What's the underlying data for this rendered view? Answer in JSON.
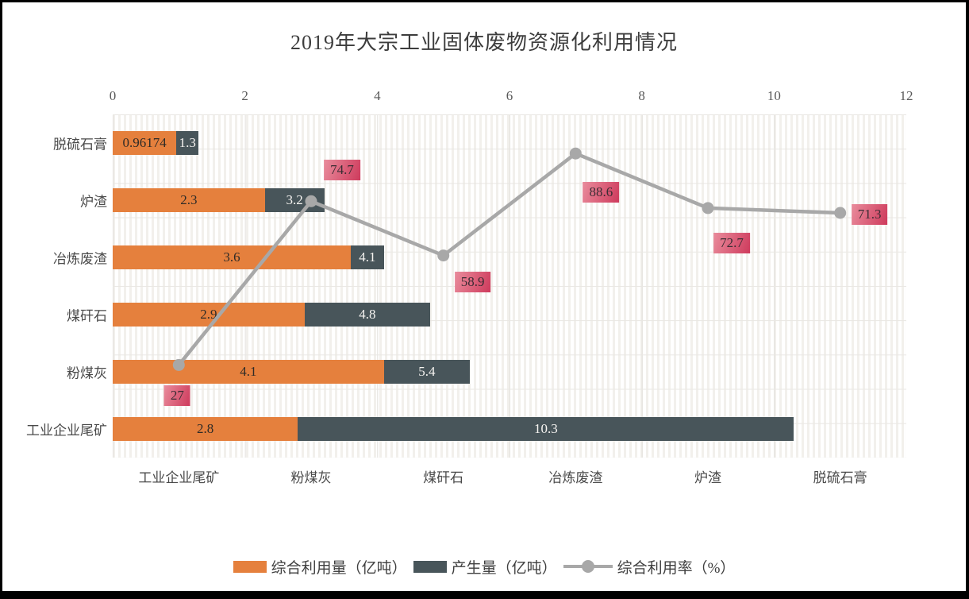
{
  "title": "2019年大宗工业固体废物资源化利用情况",
  "colors": {
    "bar_utilization": "#e5803d",
    "bar_production": "#48555a",
    "rate_line": "#a8a8a8",
    "rate_label_bg_start": "#e98c9c",
    "rate_label_bg_end": "#ce3a5c",
    "frame_border": "#000000"
  },
  "legend": {
    "items": [
      {
        "label": "综合利用量（亿吨）",
        "swatch": "bar",
        "color": "#e5803d"
      },
      {
        "label": "产生量（亿吨）",
        "swatch": "bar",
        "color": "#48555a"
      },
      {
        "label": "综合利用率（%）",
        "swatch": "line-marker",
        "color": "#a8a8a8"
      }
    ]
  },
  "chart_data": {
    "type": "bar",
    "subtype": "horizontal-stacked-bars-with-line-overlay",
    "title": "2019年大宗工业固体废物资源化利用情况",
    "bar_axis": {
      "position": "top",
      "ticks": [
        "0",
        "2",
        "4",
        "6",
        "8",
        "10",
        "12"
      ],
      "min": 0,
      "max": 12
    },
    "rate_axis": {
      "visible": false,
      "min": 0,
      "max": 100
    },
    "grid": true,
    "legend_position": "bottom",
    "y_categories_top_to_bottom": [
      "脱硫石膏",
      "炉渣",
      "冶炼废渣",
      "煤矸石",
      "粉煤灰",
      "工业企业尾矿"
    ],
    "bottom_categories_left_to_right": [
      "工业企业尾矿",
      "粉煤灰",
      "煤矸石",
      "冶炼废渣",
      "炉渣",
      "脱硫石膏"
    ],
    "bars_top_to_bottom": [
      {
        "category": "脱硫石膏",
        "utilization": "0.96174",
        "production": "1.3"
      },
      {
        "category": "炉渣",
        "utilization": "2.3",
        "production": "3.2"
      },
      {
        "category": "冶炼废渣",
        "utilization": "3.6",
        "production": "4.1"
      },
      {
        "category": "煤矸石",
        "utilization": "2.9",
        "production": "4.8"
      },
      {
        "category": "粉煤灰",
        "utilization": "4.1",
        "production": "5.4"
      },
      {
        "category": "工业企业尾矿",
        "utilization": "2.8",
        "production": "10.3"
      }
    ],
    "rate_points_left_to_right": [
      {
        "category": "工业企业尾矿",
        "value": 27
      },
      {
        "category": "粉煤灰",
        "value": 74.7
      },
      {
        "category": "煤矸石",
        "value": 58.9
      },
      {
        "category": "冶炼废渣",
        "value": 88.6
      },
      {
        "category": "炉渣",
        "value": 72.7
      },
      {
        "category": "脱硫石膏",
        "value": 71.3
      }
    ]
  }
}
